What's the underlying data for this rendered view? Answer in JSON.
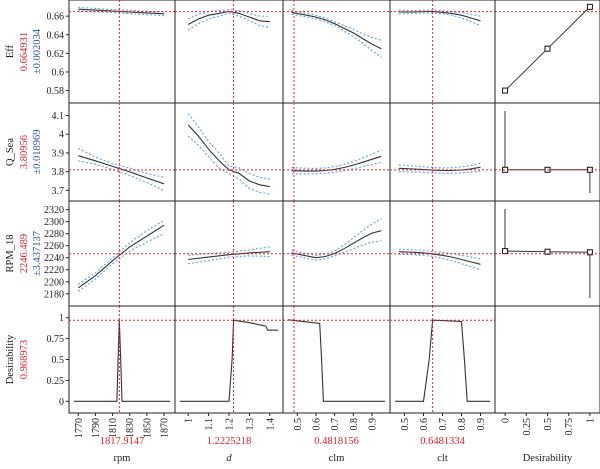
{
  "colors": {
    "current": "#e0202e",
    "ci": "#3050b8",
    "curve": "#333333",
    "ci_band": "#6aa6d8",
    "frame": "#222222"
  },
  "responses": [
    {
      "name": "Eff",
      "current": "0.664931",
      "ci": "±0.002034",
      "ticks": [
        "0.66",
        "0.64",
        "0.62",
        "0.6",
        "0.58"
      ]
    },
    {
      "name": "Q_Sea",
      "current": "3.80956",
      "ci": "±0.018969",
      "ticks": [
        "4.1",
        "4",
        "3.9",
        "3.8",
        "3.7"
      ]
    },
    {
      "name": "RPM_18",
      "current": "2246.489",
      "ci": "±3.437137",
      "ticks": [
        "2320",
        "2300",
        "2280",
        "2260",
        "2240",
        "2220",
        "2200",
        "2180"
      ]
    },
    {
      "name": "Desirability",
      "current": "0.968973",
      "ci": "",
      "ticks": [
        "1",
        "0.75",
        "0.5",
        "0.25",
        "0"
      ]
    }
  ],
  "factors": [
    {
      "name": "rpm",
      "current": "1817.9147",
      "ticks": [
        "1770",
        "1790",
        "1810",
        "1830",
        "1850",
        "1870"
      ]
    },
    {
      "name": "d",
      "current": "1.2225218",
      "ticks": [
        "1",
        "1.1",
        "1.2",
        "1.3",
        "1.4"
      ]
    },
    {
      "name": "clm",
      "current": "0.4818156",
      "ticks": [
        "0.5",
        "0.6",
        "0.7",
        "0.8",
        "0.9"
      ]
    },
    {
      "name": "clt",
      "current": "0.6481334",
      "ticks": [
        "0.5",
        "0.6",
        "0.7",
        "0.8",
        "0.9"
      ]
    },
    {
      "name": "Desirability",
      "current": "",
      "ticks": [
        "0",
        "0.25",
        "0.5",
        "0.75",
        "1"
      ]
    }
  ],
  "chart_data": {
    "type": "line",
    "title": "",
    "grid": false,
    "responses": [
      {
        "name": "Eff",
        "ylim": [
          0.572,
          0.672
        ],
        "current_value": 0.664931,
        "ci_halfwidth": 0.002034
      },
      {
        "name": "Q_Sea",
        "ylim": [
          3.67,
          4.14
        ],
        "current_value": 3.80956,
        "ci_halfwidth": 0.018969
      },
      {
        "name": "RPM_18",
        "ylim": [
          2168,
          2326
        ],
        "current_value": 2246.489,
        "ci_halfwidth": 3.437137
      },
      {
        "name": "Desirability",
        "ylim": [
          -0.08,
          1.08
        ],
        "current_value": 0.968973
      }
    ],
    "factors": [
      {
        "name": "rpm",
        "xlim": [
          1765,
          1877
        ],
        "current": 1817.9147
      },
      {
        "name": "d",
        "xlim": [
          0.96,
          1.44
        ],
        "current": 1.2225218
      },
      {
        "name": "clm",
        "xlim": [
          0.45,
          0.97
        ],
        "current": 0.4818156
      },
      {
        "name": "clt",
        "xlim": [
          0.45,
          0.95
        ],
        "current": 0.6481334
      },
      {
        "name": "Desirability",
        "xlim": [
          -0.06,
          1.06
        ]
      }
    ],
    "cells": [
      [
        {
          "x": [
            1770,
            1790,
            1810,
            1830,
            1850,
            1870
          ],
          "y": [
            0.6675,
            0.6665,
            0.6655,
            0.6645,
            0.6635,
            0.6625
          ],
          "lo": [
            0.6655,
            0.6647,
            0.6638,
            0.6628,
            0.6617,
            0.6605
          ],
          "hi": [
            0.6695,
            0.6683,
            0.6672,
            0.6662,
            0.6653,
            0.6645
          ]
        },
        {
          "x": [
            1.0,
            1.05,
            1.1,
            1.15,
            1.2,
            1.25,
            1.3,
            1.35,
            1.4
          ],
          "y": [
            0.651,
            0.657,
            0.661,
            0.663,
            0.665,
            0.663,
            0.659,
            0.655,
            0.654
          ],
          "lo": [
            0.645,
            0.652,
            0.657,
            0.66,
            0.663,
            0.66,
            0.655,
            0.65,
            0.648
          ],
          "hi": [
            0.657,
            0.662,
            0.665,
            0.666,
            0.667,
            0.666,
            0.663,
            0.66,
            0.66
          ]
        },
        {
          "x": [
            0.47,
            0.55,
            0.6,
            0.65,
            0.7,
            0.75,
            0.8,
            0.85,
            0.9,
            0.95
          ],
          "y": [
            0.664,
            0.661,
            0.659,
            0.656,
            0.652,
            0.647,
            0.642,
            0.636,
            0.63,
            0.625
          ],
          "lo": [
            0.662,
            0.659,
            0.657,
            0.654,
            0.65,
            0.644,
            0.638,
            0.631,
            0.623,
            0.616
          ],
          "hi": [
            0.666,
            0.663,
            0.661,
            0.658,
            0.654,
            0.65,
            0.646,
            0.641,
            0.637,
            0.634
          ]
        },
        {
          "x": [
            0.47,
            0.55,
            0.6,
            0.65,
            0.7,
            0.75,
            0.8,
            0.85,
            0.9
          ],
          "y": [
            0.6645,
            0.6645,
            0.665,
            0.665,
            0.664,
            0.663,
            0.661,
            0.658,
            0.655
          ],
          "lo": [
            0.6625,
            0.663,
            0.6635,
            0.6635,
            0.6625,
            0.661,
            0.658,
            0.654,
            0.65
          ],
          "hi": [
            0.6665,
            0.666,
            0.6665,
            0.6665,
            0.6655,
            0.665,
            0.664,
            0.662,
            0.66
          ]
        },
        {
          "x": [
            0,
            0.5,
            1
          ],
          "y": [
            0.58,
            0.625,
            0.67
          ],
          "markers": [
            0,
            0.5,
            1
          ]
        }
      ],
      [
        {
          "x": [
            1770,
            1790,
            1810,
            1830,
            1850,
            1870
          ],
          "y": [
            3.885,
            3.858,
            3.828,
            3.799,
            3.766,
            3.735
          ],
          "lo": [
            3.858,
            3.84,
            3.812,
            3.78,
            3.742,
            3.7
          ],
          "hi": [
            3.925,
            3.878,
            3.843,
            3.818,
            3.79,
            3.77
          ]
        },
        {
          "x": [
            1.0,
            1.05,
            1.1,
            1.15,
            1.2,
            1.25,
            1.3,
            1.35,
            1.4
          ],
          "y": [
            4.05,
            3.99,
            3.92,
            3.86,
            3.81,
            3.79,
            3.75,
            3.73,
            3.72
          ],
          "lo": [
            3.99,
            3.94,
            3.88,
            3.82,
            3.79,
            3.76,
            3.71,
            3.69,
            3.68
          ],
          "hi": [
            4.11,
            4.04,
            3.96,
            3.9,
            3.83,
            3.82,
            3.79,
            3.77,
            3.76
          ]
        },
        {
          "x": [
            0.47,
            0.55,
            0.6,
            0.65,
            0.7,
            0.75,
            0.8,
            0.85,
            0.9,
            0.95
          ],
          "y": [
            3.805,
            3.803,
            3.803,
            3.806,
            3.812,
            3.822,
            3.835,
            3.85,
            3.866,
            3.882
          ],
          "lo": [
            3.788,
            3.788,
            3.789,
            3.792,
            3.797,
            3.805,
            3.815,
            3.827,
            3.838,
            3.85
          ],
          "hi": [
            3.822,
            3.818,
            3.817,
            3.82,
            3.827,
            3.839,
            3.855,
            3.873,
            3.894,
            3.914
          ]
        },
        {
          "x": [
            0.47,
            0.55,
            0.6,
            0.65,
            0.7,
            0.75,
            0.8,
            0.85,
            0.9
          ],
          "y": [
            3.818,
            3.814,
            3.811,
            3.808,
            3.806,
            3.806,
            3.809,
            3.815,
            3.824
          ],
          "lo": [
            3.8,
            3.798,
            3.796,
            3.794,
            3.792,
            3.791,
            3.793,
            3.797,
            3.803
          ],
          "hi": [
            3.836,
            3.83,
            3.826,
            3.822,
            3.82,
            3.821,
            3.825,
            3.833,
            3.845
          ]
        },
        {
          "x": [
            0,
            0.5,
            1
          ],
          "y": [
            3.81,
            3.81,
            3.81
          ],
          "markers": [
            0,
            0.5,
            1
          ]
        }
      ],
      [
        {
          "x": [
            1770,
            1790,
            1810,
            1830,
            1850,
            1870
          ],
          "y": [
            2190,
            2210,
            2235,
            2258,
            2276,
            2294
          ],
          "lo": [
            2184,
            2205,
            2230,
            2251,
            2266,
            2280
          ],
          "hi": [
            2196,
            2215,
            2240,
            2265,
            2285,
            2302
          ]
        },
        {
          "x": [
            1.0,
            1.1,
            1.2,
            1.3,
            1.4
          ],
          "y": [
            2237,
            2241,
            2245,
            2248,
            2250
          ],
          "lo": [
            2230,
            2235,
            2241,
            2243,
            2242
          ],
          "hi": [
            2244,
            2247,
            2249,
            2253,
            2258
          ]
        },
        {
          "x": [
            0.47,
            0.55,
            0.6,
            0.65,
            0.7,
            0.75,
            0.8,
            0.85,
            0.9,
            0.95
          ],
          "y": [
            2248,
            2243,
            2240,
            2242,
            2247,
            2255,
            2264,
            2273,
            2281,
            2285
          ],
          "lo": [
            2244,
            2239,
            2236,
            2238,
            2243,
            2249,
            2255,
            2261,
            2266,
            2268
          ],
          "hi": [
            2252,
            2247,
            2244,
            2246,
            2251,
            2261,
            2273,
            2285,
            2296,
            2305
          ]
        },
        {
          "x": [
            0.47,
            0.55,
            0.6,
            0.65,
            0.7,
            0.75,
            0.8,
            0.85,
            0.9
          ],
          "y": [
            2250,
            2249,
            2248,
            2246,
            2244,
            2241,
            2237,
            2233,
            2229
          ],
          "lo": [
            2246,
            2245,
            2244,
            2242,
            2239,
            2235,
            2230,
            2225,
            2220
          ],
          "hi": [
            2254,
            2253,
            2252,
            2250,
            2249,
            2247,
            2244,
            2241,
            2238
          ]
        },
        {
          "x": [
            0,
            0.5,
            1
          ],
          "y": [
            2251,
            2250,
            2249
          ],
          "markers": [
            0,
            0.5,
            1
          ]
        }
      ],
      [
        {
          "x": [
            1765,
            1815,
            1816.5,
            1817.9,
            1819.5,
            1821,
            1877
          ],
          "y": [
            0,
            0,
            0.5,
            0.97,
            0.5,
            0,
            0
          ]
        },
        {
          "x": [
            0.96,
            1.2,
            1.215,
            1.2225,
            1.3,
            1.38,
            1.39,
            1.44
          ],
          "y": [
            0,
            0,
            0.5,
            0.97,
            0.94,
            0.9,
            0.85,
            0.85
          ]
        },
        {
          "x": [
            0.45,
            0.47,
            0.55,
            0.62,
            0.63,
            0.64,
            0.97
          ],
          "y": [
            0.975,
            0.97,
            0.95,
            0.93,
            0.5,
            0,
            0
          ]
        },
        {
          "x": [
            0.45,
            0.6,
            0.63,
            0.648,
            0.7,
            0.8,
            0.815,
            0.83,
            0.95
          ],
          "y": [
            0,
            0,
            0.5,
            0.97,
            0.965,
            0.955,
            0.5,
            0,
            0
          ]
        },
        null
      ]
    ],
    "desirability_functions": [
      {
        "x": [
          0.01,
          0.01,
          0.99,
          0.99
        ],
        "y_frac": [
          0.15,
          0.95,
          0.95,
          0.15
        ]
      }
    ]
  }
}
